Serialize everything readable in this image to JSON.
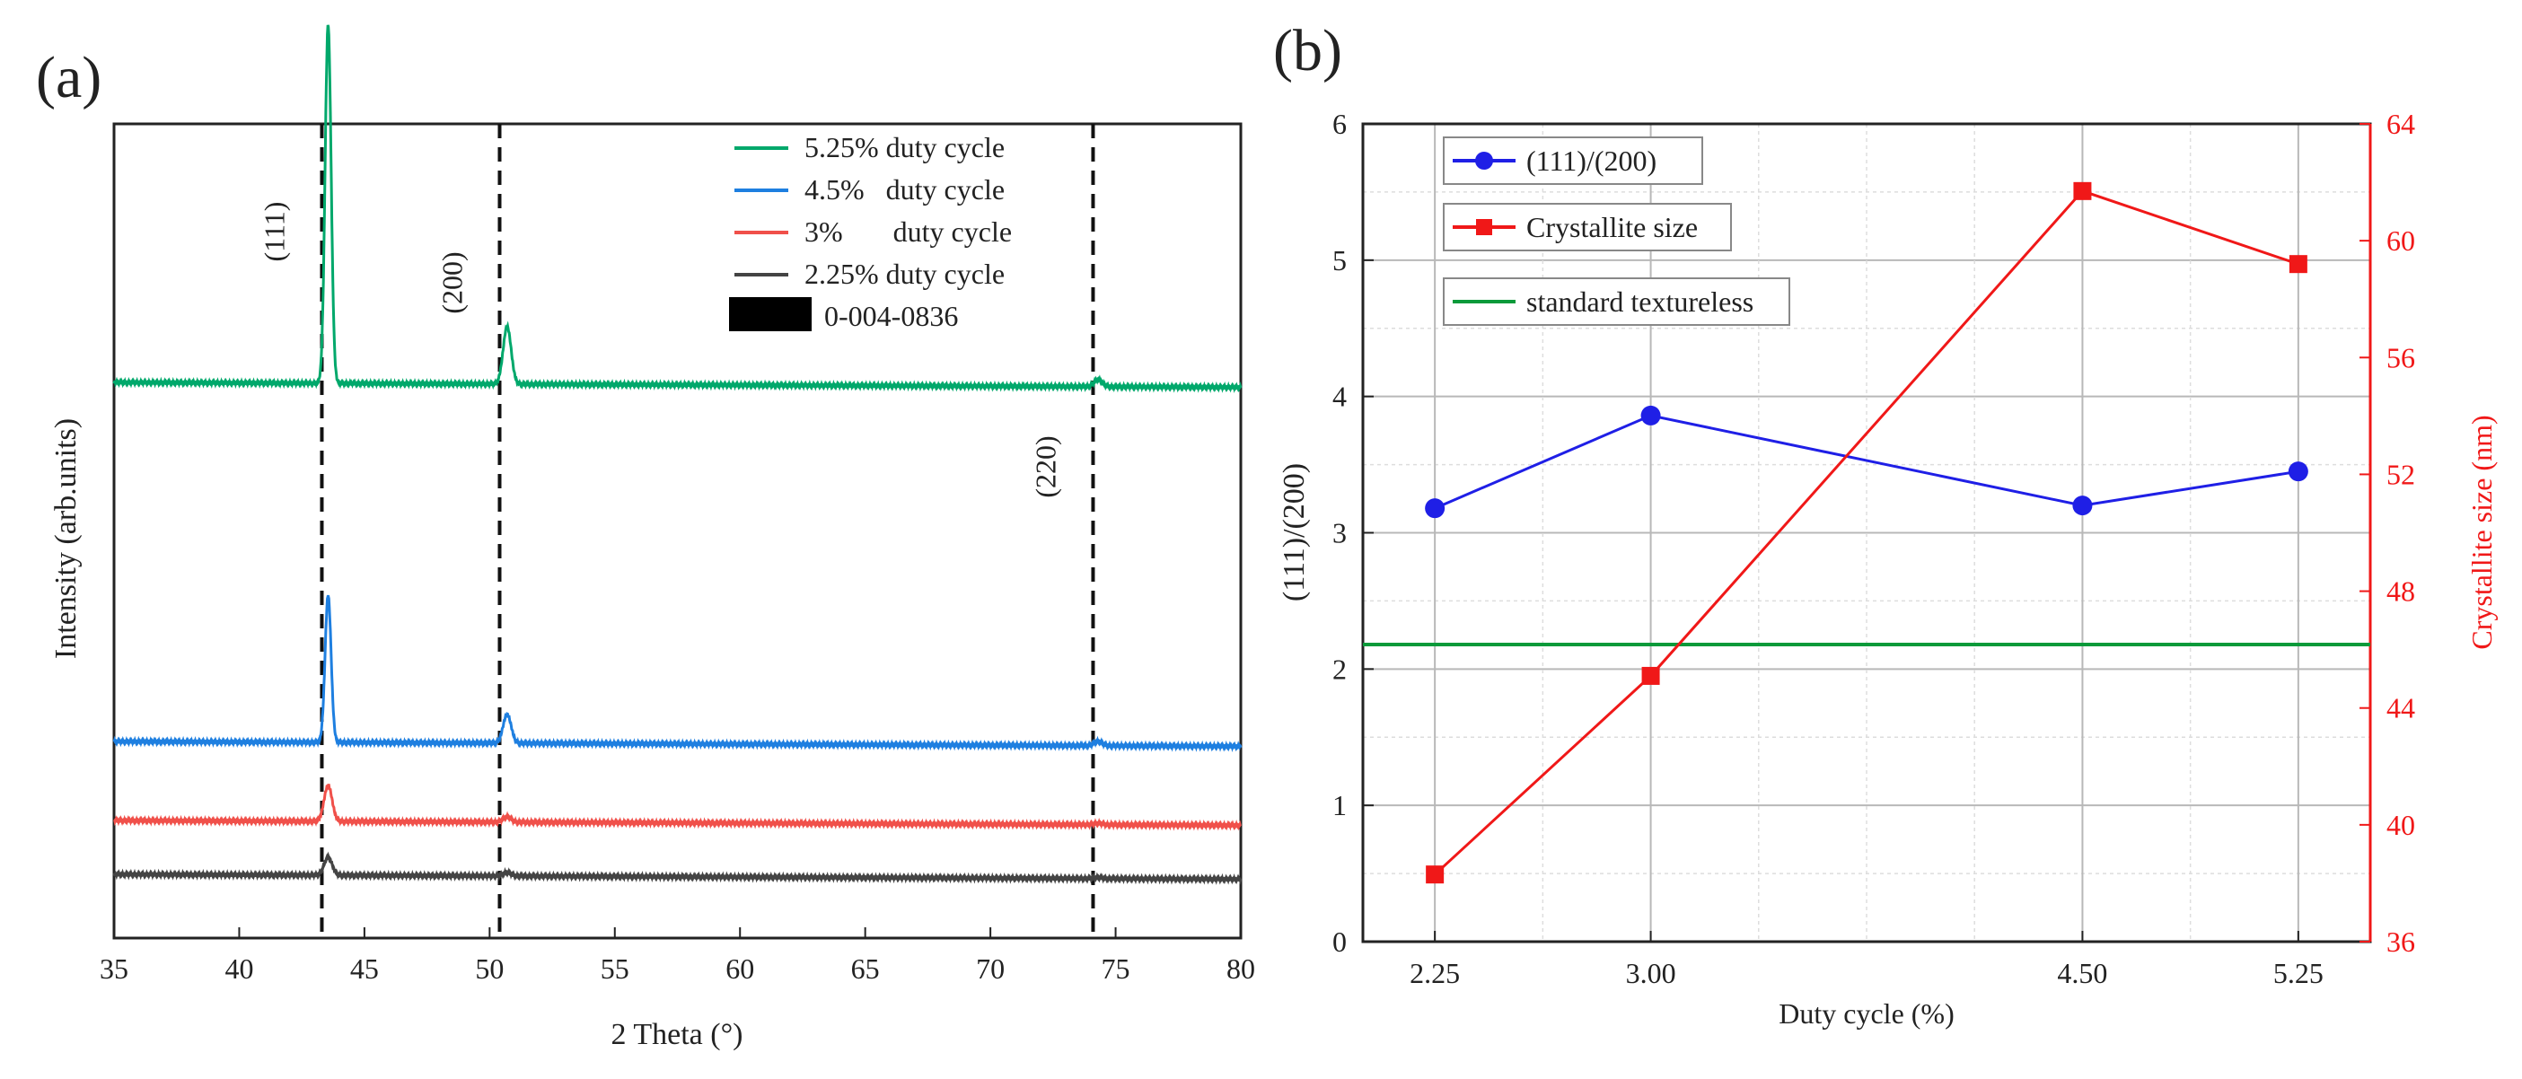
{
  "panel_a": {
    "label": "(a)"
  },
  "panel_b": {
    "label": "(b)"
  },
  "chart_data": [
    {
      "type": "line",
      "title": "",
      "xlabel": "2 Theta (°)",
      "ylabel": "Intensity (arb.units)",
      "xlim": [
        35,
        80
      ],
      "xticks": [
        35,
        40,
        45,
        50,
        55,
        60,
        65,
        70,
        75,
        80
      ],
      "reference_lines": [
        {
          "x": 43.3,
          "label": "(111)"
        },
        {
          "x": 50.4,
          "label": "(200)"
        },
        {
          "x": 74.1,
          "label": "(220)"
        }
      ],
      "series": [
        {
          "name": "5.25% duty cycle",
          "color": "#00a86b",
          "baseline": 100,
          "peaks": [
            [
              43.55,
              100
            ],
            [
              50.7,
              16
            ],
            [
              74.3,
              2
            ]
          ]
        },
        {
          "name": "4.5%   duty cycle",
          "color": "#1e7fe0",
          "baseline": 0,
          "peaks": [
            [
              43.55,
              41
            ],
            [
              50.7,
              8
            ],
            [
              74.3,
              1.2
            ]
          ]
        },
        {
          "name": "3%       duty cycle",
          "color": "#f0504a",
          "baseline": -22,
          "peaks": [
            [
              43.55,
              10
            ],
            [
              50.7,
              1.5
            ],
            [
              74.3,
              0.4
            ]
          ]
        },
        {
          "name": "2.25% duty cycle",
          "color": "#444444",
          "baseline": -37,
          "peaks": [
            [
              43.55,
              5
            ],
            [
              50.7,
              1
            ],
            [
              74.3,
              0.3
            ]
          ]
        }
      ],
      "reference_pattern": {
        "name": "0-004-0836",
        "color": "#000000"
      },
      "legend": "top-right"
    },
    {
      "type": "line",
      "title": "",
      "xlabel": "Duty cycle (%)",
      "ylabel": "(111)/(200)",
      "y2label": "Crystallite size (nm)",
      "xlim": [
        2.0,
        5.5
      ],
      "xticks": [
        "2.25",
        "3.00",
        "4.50",
        "5.25"
      ],
      "ylim": [
        0,
        6
      ],
      "yticks": [
        "0",
        "1",
        "2",
        "3",
        "4",
        "5",
        "6"
      ],
      "y2lim": [
        36,
        64
      ],
      "y2ticks": [
        "36",
        "40",
        "44",
        "48",
        "52",
        "56",
        "60",
        "64"
      ],
      "series": [
        {
          "name": "(111)/(200)",
          "axis": "left",
          "color": "#1f1fe6",
          "marker": "circle",
          "x": [
            2.25,
            3.0,
            4.5,
            5.25
          ],
          "y": [
            3.18,
            3.86,
            3.2,
            3.45
          ]
        },
        {
          "name": "Crystallite size",
          "axis": "right",
          "color": "#f01818",
          "marker": "square",
          "x": [
            2.25,
            3.0,
            4.5,
            5.25
          ],
          "y": [
            38.3,
            45.1,
            61.7,
            59.2
          ]
        }
      ],
      "hline": {
        "name": "standard textureless",
        "y": 2.18,
        "color": "#0a9a3a"
      },
      "grid": true,
      "legend": "top-left"
    }
  ]
}
